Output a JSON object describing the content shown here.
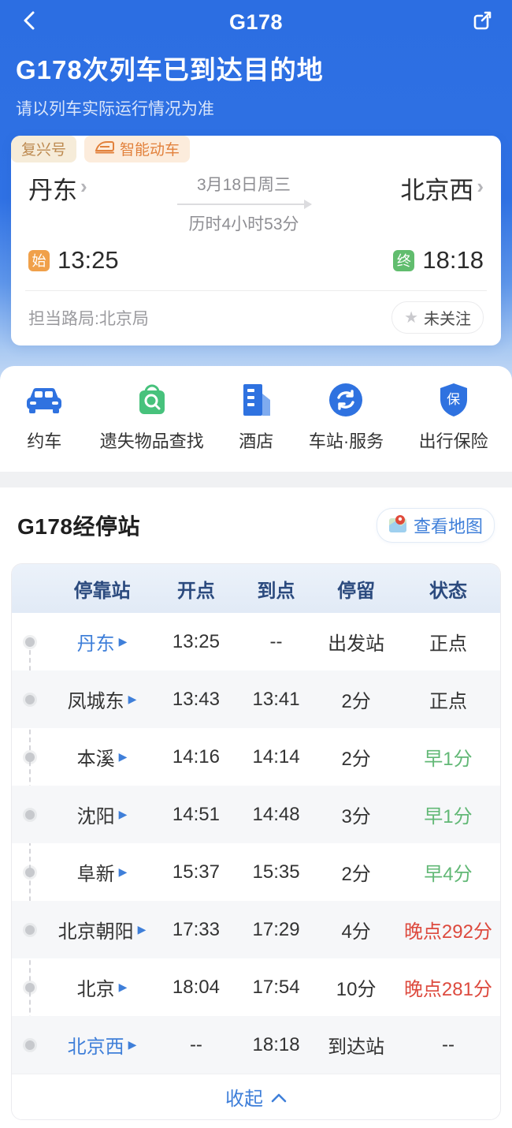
{
  "header": {
    "title": "G178",
    "headline": "G178次列车已到达目的地",
    "notice": "请以列车实际运行情况为准"
  },
  "train_card": {
    "tags": [
      {
        "label": "复兴号"
      },
      {
        "label": "智能动车"
      }
    ],
    "origin": {
      "name": "丹东",
      "badge": "始",
      "time": "13:25"
    },
    "destination": {
      "name": "北京西",
      "badge": "终",
      "time": "18:18"
    },
    "date": "3月18日周三",
    "duration": "历时4小时53分",
    "bureau": "担当路局:北京局",
    "follow_label": "未关注"
  },
  "services": [
    {
      "label": "约车",
      "icon": "car-icon"
    },
    {
      "label": "遗失物品查找",
      "icon": "lost-found-icon"
    },
    {
      "label": "酒店",
      "icon": "hotel-icon"
    },
    {
      "label": "车站·服务",
      "icon": "station-service-icon"
    },
    {
      "label": "出行保险",
      "icon": "insurance-icon",
      "icon_glyph": "保"
    }
  ],
  "stops_section": {
    "title": "G178经停站",
    "map_button": "查看地图",
    "columns": [
      "停靠站",
      "开点",
      "到点",
      "停留",
      "状态"
    ],
    "rows": [
      {
        "station": "丹东",
        "departure": "13:25",
        "arrival": "--",
        "stay": "出发站",
        "status": "正点",
        "status_type": "normal",
        "station_highlight": true
      },
      {
        "station": "凤城东",
        "departure": "13:43",
        "arrival": "13:41",
        "stay": "2分",
        "status": "正点",
        "status_type": "normal",
        "station_highlight": false
      },
      {
        "station": "本溪",
        "departure": "14:16",
        "arrival": "14:14",
        "stay": "2分",
        "status": "早1分",
        "status_type": "early",
        "station_highlight": false
      },
      {
        "station": "沈阳",
        "departure": "14:51",
        "arrival": "14:48",
        "stay": "3分",
        "status": "早1分",
        "status_type": "early",
        "station_highlight": false
      },
      {
        "station": "阜新",
        "departure": "15:37",
        "arrival": "15:35",
        "stay": "2分",
        "status": "早4分",
        "status_type": "early",
        "station_highlight": false
      },
      {
        "station": "北京朝阳",
        "departure": "17:33",
        "arrival": "17:29",
        "stay": "4分",
        "status": "晚点292分",
        "status_type": "late",
        "station_highlight": false
      },
      {
        "station": "北京",
        "departure": "18:04",
        "arrival": "17:54",
        "stay": "10分",
        "status": "晚点281分",
        "status_type": "late",
        "station_highlight": false
      },
      {
        "station": "北京西",
        "departure": "--",
        "arrival": "18:18",
        "stay": "到达站",
        "status": "--",
        "status_type": "normal",
        "station_highlight": true
      }
    ],
    "collapse_label": "收起"
  },
  "colors": {
    "accent_blue": "#2e71e4",
    "link_blue": "#3f7fd9",
    "status_early_green": "#62b876",
    "status_late_red": "#dd4a3e",
    "status_normal": "#333333",
    "badge_start_orange": "#f0a04a",
    "badge_end_green": "#61bd6e"
  }
}
